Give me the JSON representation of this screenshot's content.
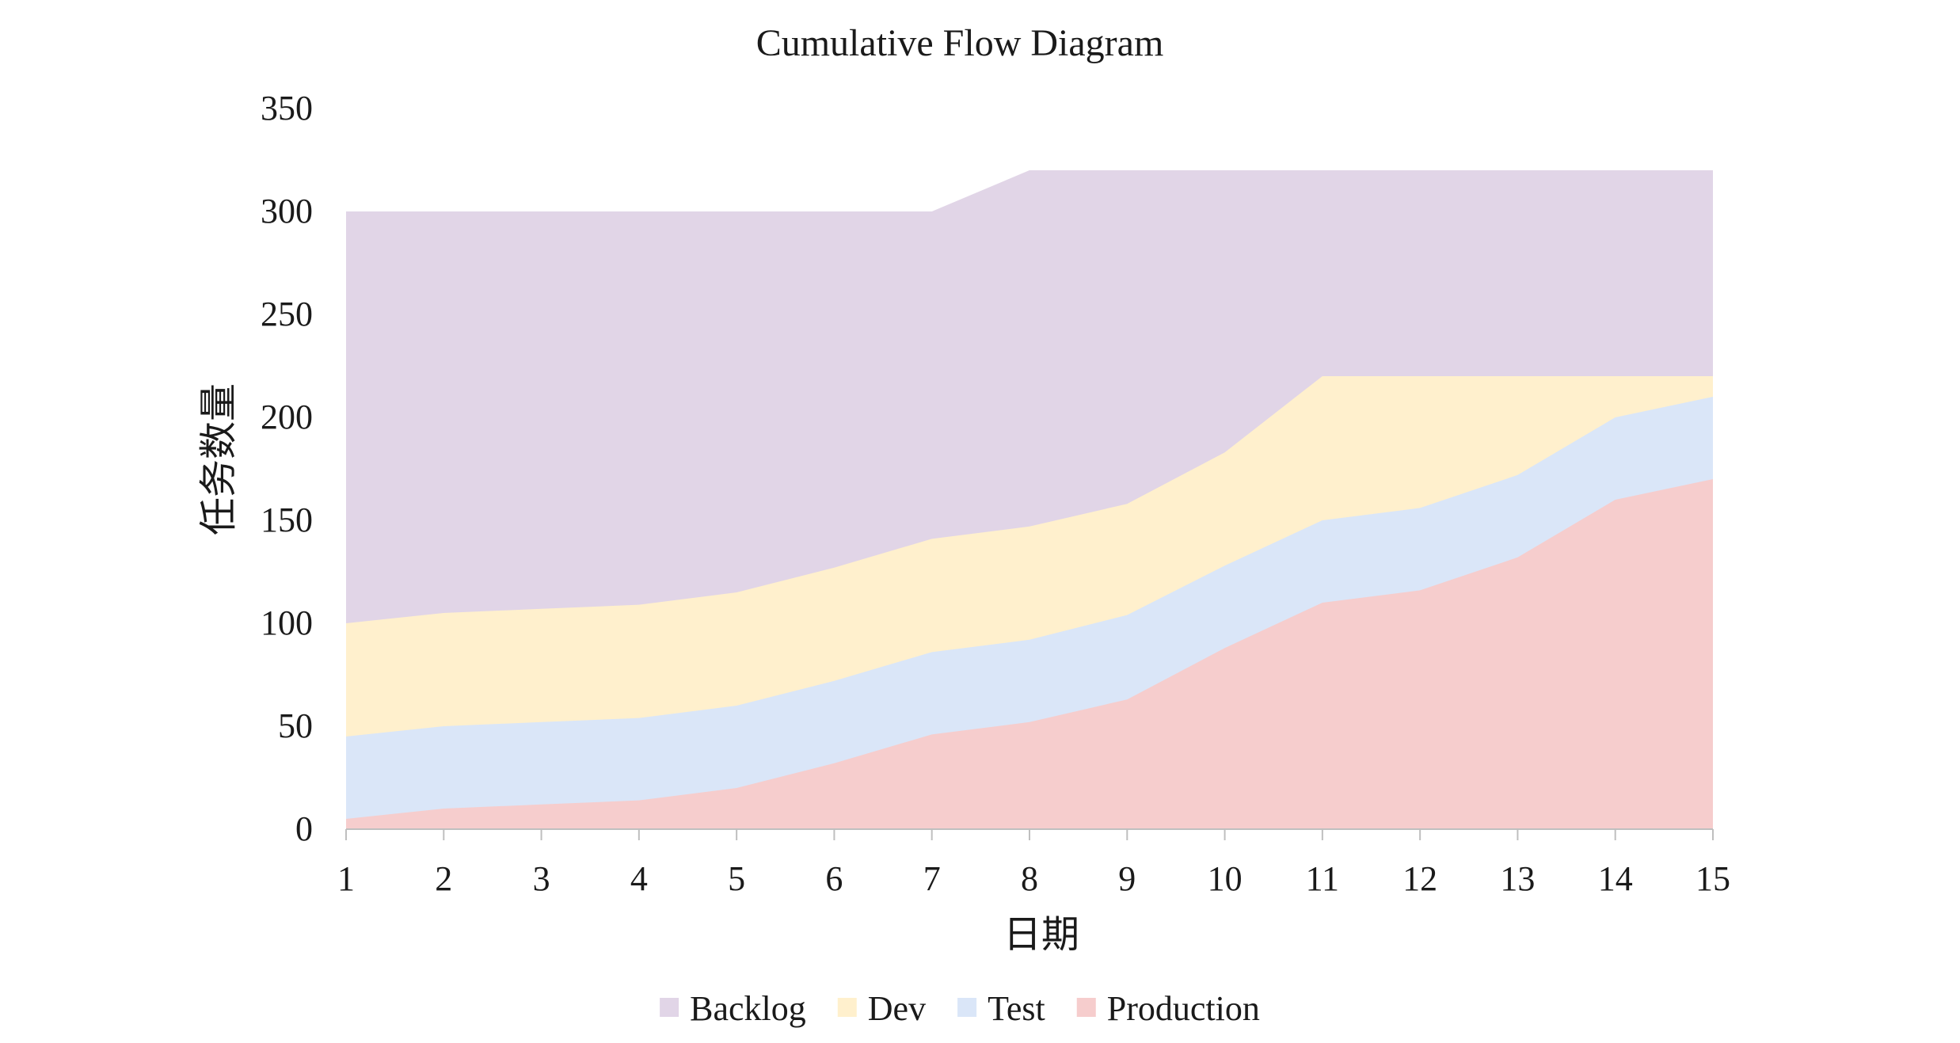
{
  "chart_data": {
    "type": "area",
    "stacked": false,
    "title": "Cumulative Flow Diagram",
    "xlabel": "日期",
    "ylabel": "任务数量",
    "x": [
      1,
      2,
      3,
      4,
      5,
      6,
      7,
      8,
      9,
      10,
      11,
      12,
      13,
      14,
      15
    ],
    "ylim": [
      0,
      350
    ],
    "yticks": [
      0,
      50,
      100,
      150,
      200,
      250,
      300,
      350
    ],
    "grid": false,
    "legend_position": "bottom",
    "series": [
      {
        "name": "Backlog",
        "color": "#e1d5e7",
        "values": [
          300,
          300,
          300,
          300,
          300,
          300,
          300,
          320,
          320,
          320,
          320,
          320,
          320,
          320,
          320
        ]
      },
      {
        "name": "Dev",
        "color": "#fff0cd",
        "values": [
          100,
          105,
          107,
          109,
          115,
          127,
          141,
          147,
          158,
          183,
          220,
          220,
          220,
          220,
          220
        ]
      },
      {
        "name": "Test",
        "color": "#dae6f8",
        "values": [
          45,
          50,
          52,
          54,
          60,
          72,
          86,
          92,
          104,
          128,
          150,
          156,
          172,
          200,
          210
        ]
      },
      {
        "name": "Production",
        "color": "#f6cdcd",
        "values": [
          5,
          10,
          12,
          14,
          20,
          32,
          46,
          52,
          63,
          88,
          110,
          116,
          132,
          160,
          170
        ]
      }
    ]
  }
}
